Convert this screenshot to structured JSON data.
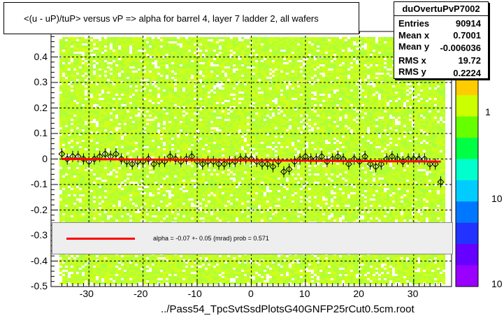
{
  "chart_data": {
    "type": "scatter",
    "title": "<(u - uP)/tuP> versus   vP => alpha for barrel 4, layer 7 ladder 2, all wafers",
    "xlabel": "",
    "ylabel": "",
    "xlim": [
      -37,
      37
    ],
    "ylim": [
      -0.5,
      0.5
    ],
    "x_ticks": [
      "-30",
      "-20",
      "-10",
      "0",
      "10",
      "20",
      "30"
    ],
    "y_ticks": [
      "-0.5",
      "-0.4",
      "-0.3",
      "-0.2",
      "-0.1",
      "0",
      "0.1",
      "0.2",
      "0.3",
      "0.4",
      "0.5"
    ],
    "colorbar_labels": [
      "1",
      "10",
      "10"
    ],
    "grid": true,
    "background": "2D histogram, yellow-green band",
    "profile_points": {
      "x": [
        -35,
        -34,
        -33,
        -32,
        -31,
        -30,
        -29,
        -28,
        -27,
        -26,
        -25,
        -24,
        -23,
        -22,
        -21,
        -20,
        -19,
        -18,
        -17,
        -16,
        -15,
        -14,
        -13,
        -12,
        -11,
        -10,
        -9,
        -8,
        -7,
        -6,
        -5,
        -4,
        -3,
        -2,
        -1,
        0,
        1,
        2,
        3,
        4,
        5,
        6,
        7,
        8,
        9,
        10,
        11,
        12,
        13,
        14,
        15,
        16,
        17,
        18,
        19,
        20,
        21,
        22,
        23,
        24,
        25,
        26,
        27,
        28,
        29,
        30,
        31,
        32,
        33,
        34,
        35
      ],
      "y": [
        0.02,
        0.0,
        0.01,
        0.01,
        0.0,
        -0.01,
        0.0,
        0.01,
        0.02,
        0.01,
        0.02,
        0.0,
        -0.01,
        -0.02,
        -0.01,
        -0.01,
        0.0,
        -0.02,
        -0.01,
        -0.01,
        0.01,
        0.0,
        -0.01,
        0.0,
        0.01,
        -0.01,
        -0.02,
        -0.01,
        -0.01,
        -0.02,
        -0.02,
        -0.01,
        -0.01,
        0.0,
        0.0,
        0.0,
        -0.01,
        -0.02,
        -0.02,
        -0.03,
        -0.01,
        -0.05,
        -0.04,
        -0.01,
        0.0,
        0.01,
        0.0,
        0.0,
        0.01,
        -0.01,
        0.0,
        0.01,
        0.0,
        -0.02,
        0.0,
        -0.01,
        0.01,
        -0.02,
        -0.03,
        -0.02,
        0.0,
        0.01,
        0.0,
        -0.01,
        0.0,
        0.0,
        0.0,
        0.0,
        -0.02,
        -0.02,
        -0.09
      ]
    },
    "fit": {
      "value": -0.07,
      "error": 0.05,
      "prob": 0.571,
      "color": "#ff0000"
    }
  },
  "stats": {
    "name": "duOvertuPvP7002",
    "rows": [
      {
        "label": "Entries",
        "value": "90914"
      },
      {
        "label": "Mean x",
        "value": "0.7001"
      },
      {
        "label": "Mean y",
        "value": "-0.006036"
      },
      {
        "label": "RMS x",
        "value": "19.72"
      },
      {
        "label": "RMS y",
        "value": "0.2224"
      }
    ]
  },
  "fit_legend": "alpha =    -0.07 +-  0.05 (mrad) prob = 0.571",
  "file_label": "../Pass54_TpcSvtSsdPlotsG40GNFP25rCut0.5cm.root",
  "colors": {
    "band": "#bfff2a",
    "fit": "#ff0000",
    "grid": "#000000"
  }
}
